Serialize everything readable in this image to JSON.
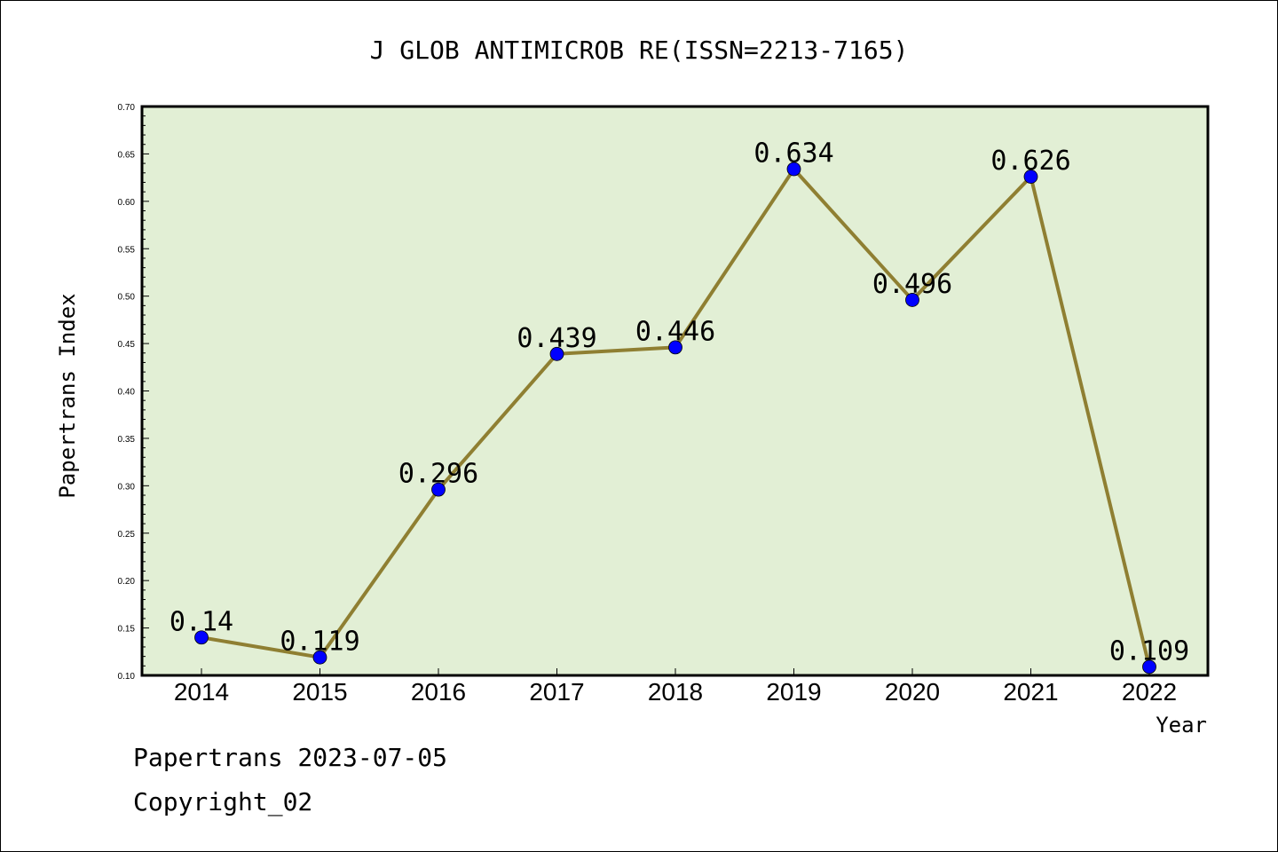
{
  "chart_data": {
    "type": "line",
    "title": "J GLOB ANTIMICROB RE(ISSN=2213-7165)",
    "xlabel": "Year",
    "ylabel": "Papertrans Index",
    "categories": [
      "2014",
      "2015",
      "2016",
      "2017",
      "2018",
      "2019",
      "2020",
      "2021",
      "2022"
    ],
    "series": [
      {
        "values": [
          0.14,
          0.119,
          0.296,
          0.439,
          0.446,
          0.634,
          0.496,
          0.626,
          0.109
        ]
      }
    ],
    "data_labels": [
      "0.14",
      "0.119",
      "0.296",
      "0.439",
      "0.446",
      "0.634",
      "0.496",
      "0.626",
      "0.109"
    ],
    "ylim": [
      0.1,
      0.7
    ],
    "yticks": [
      "0.10",
      "0.15",
      "0.20",
      "0.25",
      "0.30",
      "0.35",
      "0.40",
      "0.45",
      "0.50",
      "0.55",
      "0.60",
      "0.65",
      "0.70"
    ],
    "grid": false,
    "legend": "none"
  },
  "footer": {
    "line1": "Papertrans 2023-07-05",
    "line2": "Copyright_02"
  },
  "colors": {
    "plot_background": "#e2efd5",
    "line": "#8f7f32",
    "marker": "#0000ff"
  }
}
